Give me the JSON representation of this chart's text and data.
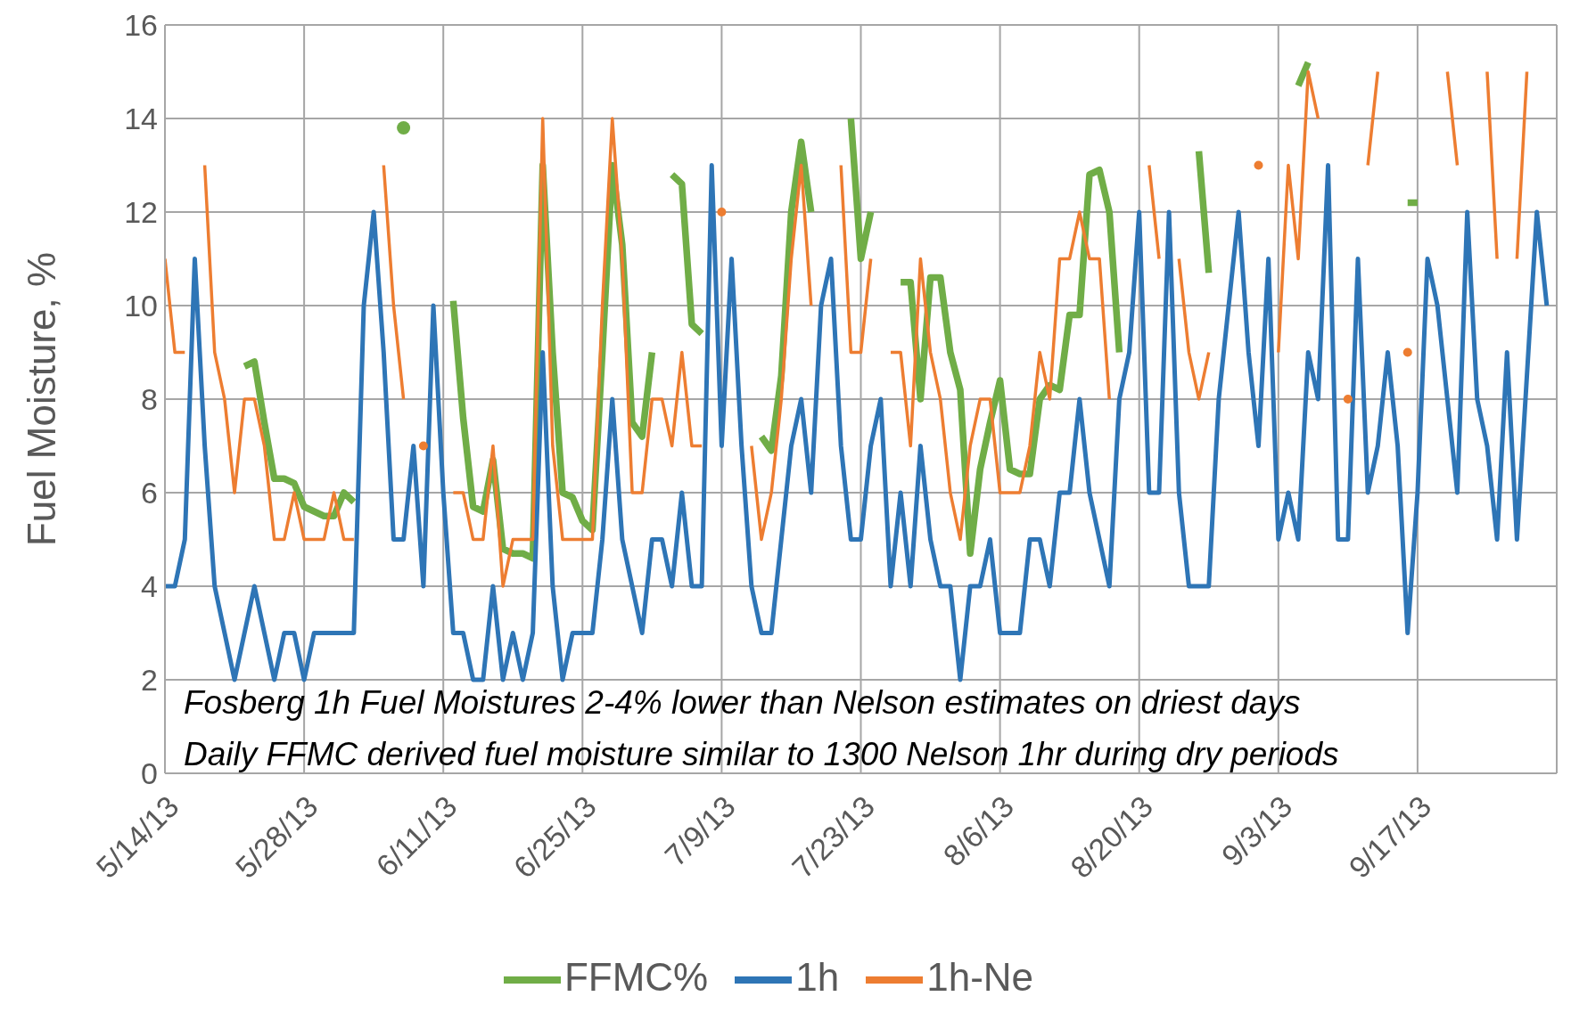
{
  "chart_data": {
    "type": "line",
    "ylabel": "Fuel Moisture, %",
    "ylim": [
      0,
      16
    ],
    "yticks": [
      0,
      2,
      4,
      6,
      8,
      10,
      12,
      14,
      16
    ],
    "xlim": [
      "2013-05-14",
      "2013-10-01"
    ],
    "xticks": [
      {
        "value": "2013-05-14",
        "label": "5/14/13"
      },
      {
        "value": "2013-05-28",
        "label": "5/28/13"
      },
      {
        "value": "2013-06-11",
        "label": "6/11/13"
      },
      {
        "value": "2013-06-25",
        "label": "6/25/13"
      },
      {
        "value": "2013-07-09",
        "label": "7/9/13"
      },
      {
        "value": "2013-07-23",
        "label": "7/23/13"
      },
      {
        "value": "2013-08-06",
        "label": "8/6/13"
      },
      {
        "value": "2013-08-20",
        "label": "8/20/13"
      },
      {
        "value": "2013-09-03",
        "label": "9/3/13"
      },
      {
        "value": "2013-09-17",
        "label": "9/17/13"
      },
      {
        "value": "2013-10-01",
        "label": null
      }
    ],
    "grid": true,
    "legend": "bottom",
    "annotations": [
      "Fosberg 1h Fuel Moistures 2-4% lower than Nelson estimates on driest days",
      "Daily FFMC derived fuel moisture similar to 1300 Nelson 1hr during dry periods"
    ],
    "x": [
      "2013-05-14",
      "2013-05-15",
      "2013-05-16",
      "2013-05-17",
      "2013-05-18",
      "2013-05-19",
      "2013-05-20",
      "2013-05-21",
      "2013-05-22",
      "2013-05-23",
      "2013-05-24",
      "2013-05-25",
      "2013-05-26",
      "2013-05-27",
      "2013-05-28",
      "2013-05-29",
      "2013-05-30",
      "2013-05-31",
      "2013-06-01",
      "2013-06-02",
      "2013-06-03",
      "2013-06-04",
      "2013-06-05",
      "2013-06-06",
      "2013-06-07",
      "2013-06-08",
      "2013-06-09",
      "2013-06-10",
      "2013-06-11",
      "2013-06-12",
      "2013-06-13",
      "2013-06-14",
      "2013-06-15",
      "2013-06-16",
      "2013-06-17",
      "2013-06-18",
      "2013-06-19",
      "2013-06-20",
      "2013-06-21",
      "2013-06-22",
      "2013-06-23",
      "2013-06-24",
      "2013-06-25",
      "2013-06-26",
      "2013-06-27",
      "2013-06-28",
      "2013-06-29",
      "2013-06-30",
      "2013-07-01",
      "2013-07-02",
      "2013-07-03",
      "2013-07-04",
      "2013-07-05",
      "2013-07-06",
      "2013-07-07",
      "2013-07-08",
      "2013-07-09",
      "2013-07-10",
      "2013-07-11",
      "2013-07-12",
      "2013-07-13",
      "2013-07-14",
      "2013-07-15",
      "2013-07-16",
      "2013-07-17",
      "2013-07-18",
      "2013-07-19",
      "2013-07-20",
      "2013-07-21",
      "2013-07-22",
      "2013-07-23",
      "2013-07-24",
      "2013-07-25",
      "2013-07-26",
      "2013-07-27",
      "2013-07-28",
      "2013-07-29",
      "2013-07-30",
      "2013-07-31",
      "2013-08-01",
      "2013-08-02",
      "2013-08-03",
      "2013-08-04",
      "2013-08-05",
      "2013-08-06",
      "2013-08-07",
      "2013-08-08",
      "2013-08-09",
      "2013-08-10",
      "2013-08-11",
      "2013-08-12",
      "2013-08-13",
      "2013-08-14",
      "2013-08-15",
      "2013-08-16",
      "2013-08-17",
      "2013-08-18",
      "2013-08-19",
      "2013-08-20",
      "2013-08-21",
      "2013-08-22",
      "2013-08-23",
      "2013-08-24",
      "2013-08-25",
      "2013-08-26",
      "2013-08-27",
      "2013-08-28",
      "2013-08-29",
      "2013-08-30",
      "2013-08-31",
      "2013-09-01",
      "2013-09-02",
      "2013-09-03",
      "2013-09-04",
      "2013-09-05",
      "2013-09-06",
      "2013-09-07",
      "2013-09-08",
      "2013-09-09",
      "2013-09-10",
      "2013-09-11",
      "2013-09-12",
      "2013-09-13",
      "2013-09-14",
      "2013-09-15",
      "2013-09-16",
      "2013-09-17",
      "2013-09-18",
      "2013-09-19",
      "2013-09-20",
      "2013-09-21",
      "2013-09-22",
      "2013-09-23",
      "2013-09-24",
      "2013-09-25",
      "2013-09-26",
      "2013-09-27",
      "2013-09-28",
      "2013-09-29",
      "2013-09-30"
    ],
    "series": [
      {
        "name": "FFMC%",
        "color": "#70ad47",
        "values": [
          null,
          null,
          null,
          null,
          null,
          null,
          null,
          null,
          8.7,
          8.8,
          7.5,
          6.3,
          6.3,
          6.2,
          5.7,
          5.6,
          5.5,
          5.5,
          6.0,
          5.8,
          null,
          null,
          null,
          null,
          13.8,
          null,
          null,
          null,
          null,
          10.1,
          7.6,
          5.7,
          5.6,
          6.7,
          4.8,
          4.7,
          4.7,
          4.6,
          13,
          9,
          6,
          5.9,
          5.4,
          5.2,
          9,
          13,
          11.3,
          7.5,
          7.2,
          9,
          null,
          12.8,
          12.6,
          9.6,
          9.4,
          null,
          null,
          null,
          null,
          null,
          7.2,
          6.9,
          8.5,
          12,
          13.5,
          12,
          null,
          null,
          null,
          14,
          11,
          12,
          null,
          null,
          10.5,
          10.5,
          8,
          10.6,
          10.6,
          9,
          8.2,
          4.7,
          6.5,
          7.5,
          8.4,
          6.5,
          6.4,
          6.4,
          8,
          8.3,
          8.2,
          9.8,
          9.8,
          12.8,
          12.9,
          12,
          9,
          null,
          null,
          null,
          null,
          null,
          null,
          null,
          13.3,
          10.7,
          null,
          null,
          null,
          null,
          null,
          null,
          null,
          null,
          14.7,
          15.2,
          null,
          null,
          null,
          null,
          null,
          null,
          null,
          null,
          null,
          12.2,
          12.2,
          null,
          null,
          null,
          null,
          null,
          null,
          null,
          null,
          null,
          null,
          null,
          null,
          null
        ]
      },
      {
        "name": "1h",
        "color": "#2e75b6",
        "values": [
          4,
          4,
          5,
          11,
          7,
          4,
          3,
          2,
          3,
          4,
          3,
          2,
          3,
          3,
          2,
          3,
          3,
          3,
          3,
          3,
          10,
          12,
          9,
          5,
          5,
          7,
          4,
          10,
          6,
          3,
          3,
          2,
          2,
          4,
          2,
          3,
          2,
          3,
          9,
          4,
          2,
          3,
          3,
          3,
          5,
          8,
          5,
          4,
          3,
          5,
          5,
          4,
          6,
          4,
          4,
          13,
          7,
          11,
          7,
          4,
          3,
          3,
          5,
          7,
          8,
          6,
          10,
          11,
          7,
          5,
          5,
          7,
          8,
          4,
          6,
          4,
          7,
          5,
          4,
          4,
          2,
          4,
          4,
          5,
          3,
          3,
          3,
          5,
          5,
          4,
          6,
          6,
          8,
          6,
          5,
          4,
          8,
          9,
          12,
          6,
          6,
          12,
          6,
          4,
          4,
          4,
          8,
          10,
          12,
          9,
          7,
          11,
          5,
          6,
          5,
          9,
          8,
          13,
          5,
          5,
          11,
          6,
          7,
          9,
          7,
          3,
          6,
          11,
          10,
          8,
          6,
          12,
          8,
          7,
          5,
          9,
          5,
          8.5,
          12,
          10
        ]
      },
      {
        "name": "1h-Ne",
        "color": "#ed7d31",
        "values": [
          11,
          9,
          9,
          null,
          13,
          9,
          8,
          6,
          8,
          8,
          7,
          5,
          5,
          6,
          5,
          5,
          5,
          6,
          5,
          5,
          null,
          null,
          13,
          10,
          8,
          null,
          7,
          null,
          null,
          6,
          6,
          5,
          5,
          7,
          4,
          5,
          5,
          5,
          14,
          7,
          5,
          5,
          5,
          5,
          10,
          14,
          11,
          6,
          6,
          8,
          8,
          7,
          9,
          7,
          7,
          null,
          12,
          null,
          null,
          7,
          5,
          6,
          8,
          11,
          13,
          10,
          null,
          null,
          13,
          9,
          9,
          11,
          null,
          9,
          9,
          7,
          11,
          9,
          8,
          6,
          5,
          7,
          8,
          8,
          6,
          6,
          6,
          7,
          9,
          8,
          11,
          11,
          12,
          11,
          11,
          8,
          null,
          null,
          null,
          13,
          11,
          null,
          11,
          9,
          8,
          9,
          null,
          null,
          null,
          null,
          13,
          null,
          9,
          13,
          11,
          15,
          14,
          null,
          null,
          8,
          null,
          13,
          15,
          null,
          null,
          9,
          null,
          null,
          null,
          15,
          13,
          null,
          null,
          15,
          11,
          null,
          11,
          15,
          null,
          null
        ]
      }
    ]
  }
}
